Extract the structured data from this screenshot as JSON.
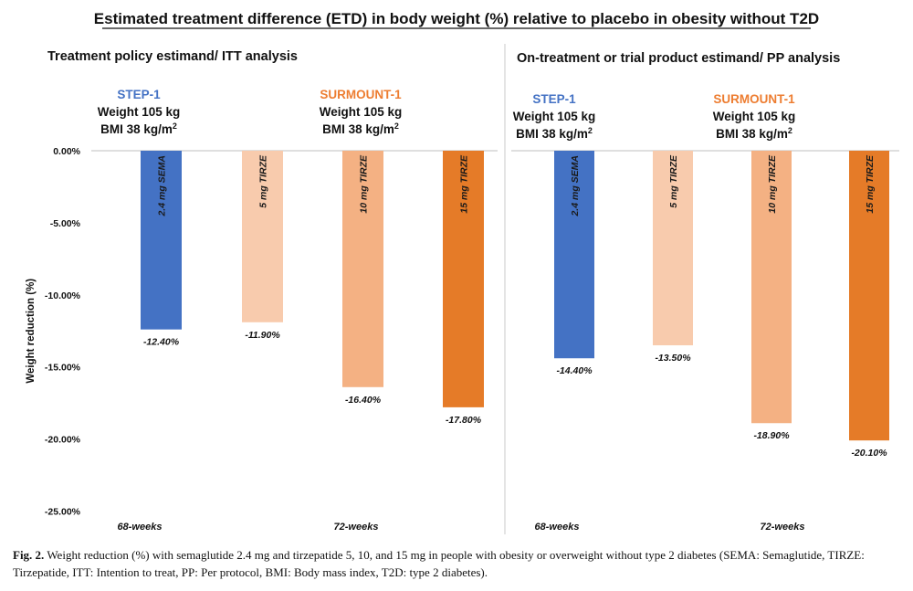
{
  "title": "Estimated treatment difference (ETD) in body weight (%) relative to placebo in obesity without T2D",
  "colors": {
    "step": "#4472c4",
    "surmount": "#ed7d31",
    "tirze_5": "#f8cbad",
    "tirze_10": "#f4b183",
    "tirze_15": "#e57b28"
  },
  "chart_data": [
    {
      "type": "bar",
      "panel_title": "Treatment policy estimand/ ITT analysis",
      "ylabel": "Weight reduction (%)",
      "ylim": [
        -25,
        0
      ],
      "yticks": [
        "0.00%",
        "-5.00%",
        "-10.00%",
        "-15.00%",
        "-20.00%",
        "-25.00%"
      ],
      "grid": false,
      "studies": [
        {
          "name": "STEP-1",
          "weight": "Weight 105 kg",
          "bmi": "BMI 38 kg/m",
          "bmi_sup": "2",
          "weeks": "68-weeks"
        },
        {
          "name": "SURMOUNT-1",
          "weight": "Weight 105 kg",
          "bmi": "BMI 38 kg/m",
          "bmi_sup": "2",
          "weeks": "72-weeks"
        }
      ],
      "categories": [
        "2.4 mg SEMA",
        "5 mg TIRZE",
        "10 mg TIRZE",
        "15 mg TIRZE"
      ],
      "values": [
        -12.4,
        -11.9,
        -16.4,
        -17.8
      ],
      "value_labels": [
        "-12.40%",
        "-11.90%",
        "-16.40%",
        "-17.80%"
      ]
    },
    {
      "type": "bar",
      "panel_title": "On-treatment or trial product estimand/ PP analysis",
      "ylim": [
        -25,
        0
      ],
      "grid": false,
      "studies": [
        {
          "name": "STEP-1",
          "weight": "Weight 105 kg",
          "bmi": "BMI 38 kg/m",
          "bmi_sup": "2",
          "weeks": "68-weeks"
        },
        {
          "name": "SURMOUNT-1",
          "weight": "Weight 105 kg",
          "bmi": "BMI 38 kg/m",
          "bmi_sup": "2",
          "weeks": "72-weeks"
        }
      ],
      "categories": [
        "2.4 mg SEMA",
        "5 mg TIRZE",
        "10 mg TIRZE",
        "15 mg TIRZE"
      ],
      "values": [
        -14.4,
        -13.5,
        -18.9,
        -20.1
      ],
      "value_labels": [
        "-14.40%",
        "-13.50%",
        "-18.90%",
        "-20.10%"
      ]
    }
  ],
  "caption": {
    "label": "Fig. 2.",
    "text": " Weight reduction (%) with semaglutide 2.4 mg and tirzepatide 5, 10, and 15 mg in people with obesity or overweight without type 2 diabetes (SEMA: Semaglutide, TIRZE: Tirzepatide, ITT: Intention to treat, PP: Per protocol, BMI: Body mass index, T2D: type 2 diabetes)."
  }
}
